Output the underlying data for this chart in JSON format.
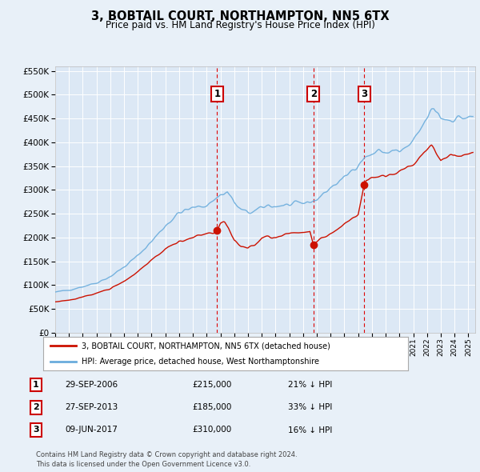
{
  "title": "3, BOBTAIL COURT, NORTHAMPTON, NN5 6TX",
  "subtitle": "Price paid vs. HM Land Registry's House Price Index (HPI)",
  "background_color": "#e8f0f8",
  "plot_bg_color": "#dce8f5",
  "legend_label_red": "3, BOBTAIL COURT, NORTHAMPTON, NN5 6TX (detached house)",
  "legend_label_blue": "HPI: Average price, detached house, West Northamptonshire",
  "footer": "Contains HM Land Registry data © Crown copyright and database right 2024.\nThis data is licensed under the Open Government Licence v3.0.",
  "transactions": [
    {
      "id": 1,
      "date": "29-SEP-2006",
      "price": 215000,
      "hpi_pct": "21% ↓ HPI",
      "x": 2006.75
    },
    {
      "id": 2,
      "date": "27-SEP-2013",
      "price": 185000,
      "hpi_pct": "33% ↓ HPI",
      "x": 2013.75
    },
    {
      "id": 3,
      "date": "09-JUN-2017",
      "price": 310000,
      "hpi_pct": "16% ↓ HPI",
      "x": 2017.45
    }
  ],
  "ylim": [
    0,
    560000
  ],
  "yticks": [
    0,
    50000,
    100000,
    150000,
    200000,
    250000,
    300000,
    350000,
    400000,
    450000,
    500000,
    550000
  ],
  "xlim": [
    1995.0,
    2025.5
  ],
  "xticks": [
    1995,
    1996,
    1997,
    1998,
    1999,
    2000,
    2001,
    2002,
    2003,
    2004,
    2005,
    2006,
    2007,
    2008,
    2009,
    2010,
    2011,
    2012,
    2013,
    2014,
    2015,
    2016,
    2017,
    2018,
    2019,
    2020,
    2021,
    2022,
    2023,
    2024,
    2025
  ]
}
